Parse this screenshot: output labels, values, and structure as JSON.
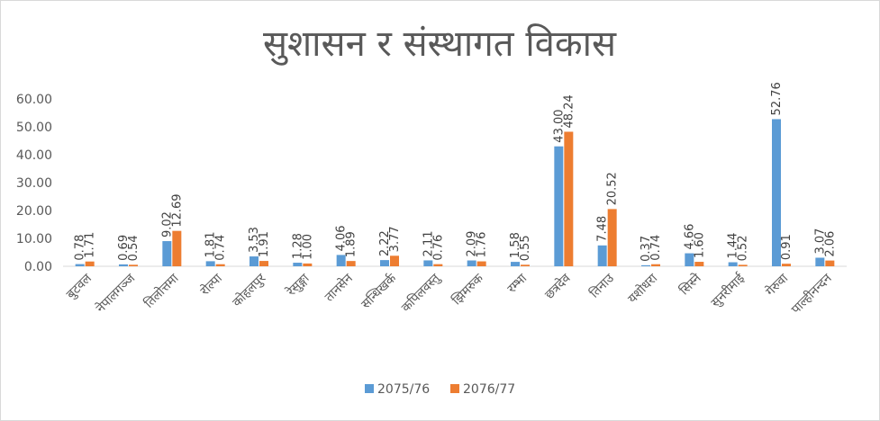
{
  "chart_data": {
    "type": "bar",
    "title": "सुशासन र संस्थागत विकास",
    "categories": [
      "बुटवल",
      "नेपालगञ्ज",
      "तिलोत्तमा",
      "रोल्पा",
      "कोहलपुर",
      "रेसुङ्गा",
      "तानसेन",
      "सन्धिखर्क",
      "कपिलवस्तु",
      "झिमरुक",
      "रम्भा",
      "छत्रदेव",
      "तिनाउ",
      "यशोधरा",
      "सिस्ने",
      "सुनरीमाई",
      "गेरुवा",
      "पाल्हीनन्दन"
    ],
    "series": [
      {
        "name": "2075/76",
        "color": "#5b9bd5",
        "values": [
          0.78,
          0.69,
          9.02,
          1.81,
          3.53,
          1.28,
          4.06,
          2.22,
          2.11,
          2.09,
          1.58,
          43.0,
          7.48,
          0.37,
          4.66,
          1.44,
          52.76,
          3.07
        ],
        "labels": [
          "0.78",
          "0.69",
          "9.02",
          "1.81",
          "3.53",
          "1.28",
          "4.06",
          "2.22",
          "2.11",
          "2.09",
          "1.58",
          "43.00",
          "7.48",
          "0.37",
          "4.66",
          "1.44",
          "52.76",
          "3.07"
        ]
      },
      {
        "name": "2076/77",
        "color": "#ed7d31",
        "values": [
          1.71,
          0.54,
          12.69,
          0.74,
          1.91,
          1.0,
          1.89,
          3.77,
          0.76,
          1.76,
          0.55,
          48.24,
          20.52,
          0.74,
          1.6,
          0.52,
          0.91,
          2.06
        ],
        "labels": [
          "1.71",
          "0.54",
          "12.69",
          "0.74",
          "1.91",
          "1.00",
          "1.89",
          "3.77",
          "0.76",
          "1.76",
          "0.55",
          "48.24",
          "20.52",
          "0.74",
          "1.60",
          "0.52",
          "0.91",
          "2.06"
        ]
      }
    ],
    "y_ticks": [
      "0.00",
      "10.00",
      "20.00",
      "30.00",
      "40.00",
      "50.00",
      "60.00"
    ],
    "ylim": [
      0,
      60
    ],
    "grid": false,
    "legend_position": "bottom"
  }
}
